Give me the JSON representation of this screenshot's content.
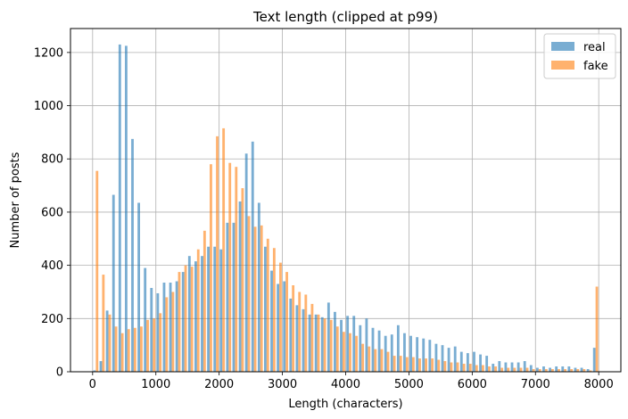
{
  "chart_data": {
    "type": "bar",
    "title": "Text length (clipped at p99)",
    "xlabel": "Length (characters)",
    "ylabel": "Number of posts",
    "xlim": [
      -350,
      8350
    ],
    "ylim": [
      0,
      1290
    ],
    "xticks": [
      0,
      1000,
      2000,
      3000,
      4000,
      5000,
      6000,
      7000,
      8000
    ],
    "yticks": [
      0,
      200,
      400,
      600,
      800,
      1000,
      1200
    ],
    "grid": true,
    "legend_position": "top-right",
    "bin_width": 100,
    "bin_starts": [
      0,
      100,
      200,
      300,
      400,
      500,
      600,
      700,
      800,
      900,
      1000,
      1100,
      1200,
      1300,
      1400,
      1500,
      1600,
      1700,
      1800,
      1900,
      2000,
      2100,
      2200,
      2300,
      2400,
      2500,
      2600,
      2700,
      2800,
      2900,
      3000,
      3100,
      3200,
      3300,
      3400,
      3500,
      3600,
      3700,
      3800,
      3900,
      4000,
      4100,
      4200,
      4300,
      4400,
      4500,
      4600,
      4700,
      4800,
      4900,
      5000,
      5100,
      5200,
      5300,
      5400,
      5500,
      5600,
      5700,
      5800,
      5900,
      6000,
      6100,
      6200,
      6300,
      6400,
      6500,
      6600,
      6700,
      6800,
      6900,
      7000,
      7100,
      7200,
      7300,
      7400,
      7500,
      7600,
      7700,
      7800,
      7900
    ],
    "series": [
      {
        "name": "real",
        "color": "#1f77b4",
        "opacity": 0.6,
        "values": [
          5,
          40,
          230,
          665,
          1230,
          1225,
          875,
          635,
          390,
          315,
          295,
          335,
          335,
          340,
          375,
          435,
          415,
          435,
          470,
          470,
          460,
          560,
          560,
          640,
          820,
          865,
          635,
          470,
          380,
          330,
          340,
          275,
          250,
          235,
          215,
          215,
          205,
          260,
          225,
          195,
          210,
          210,
          175,
          200,
          165,
          155,
          135,
          140,
          175,
          145,
          135,
          130,
          125,
          120,
          105,
          100,
          90,
          95,
          75,
          70,
          75,
          65,
          60,
          30,
          40,
          35,
          35,
          35,
          40,
          25,
          15,
          20,
          15,
          20,
          20,
          20,
          15,
          15,
          10,
          90
        ],
        "last_bin_value": 90
      },
      {
        "name": "fake",
        "color": "#ff7f0e",
        "opacity": 0.6,
        "values": [
          755,
          365,
          215,
          170,
          145,
          160,
          165,
          170,
          195,
          200,
          220,
          280,
          300,
          375,
          400,
          395,
          460,
          530,
          780,
          885,
          915,
          785,
          770,
          690,
          585,
          545,
          550,
          500,
          465,
          410,
          375,
          325,
          300,
          290,
          255,
          215,
          200,
          195,
          170,
          150,
          145,
          135,
          105,
          95,
          85,
          85,
          75,
          60,
          60,
          55,
          55,
          50,
          50,
          50,
          45,
          40,
          35,
          35,
          30,
          30,
          25,
          25,
          20,
          20,
          15,
          15,
          15,
          15,
          15,
          10,
          10,
          10,
          10,
          10,
          10,
          10,
          10,
          10,
          5,
          320
        ],
        "last_bin_value": 320
      }
    ]
  }
}
